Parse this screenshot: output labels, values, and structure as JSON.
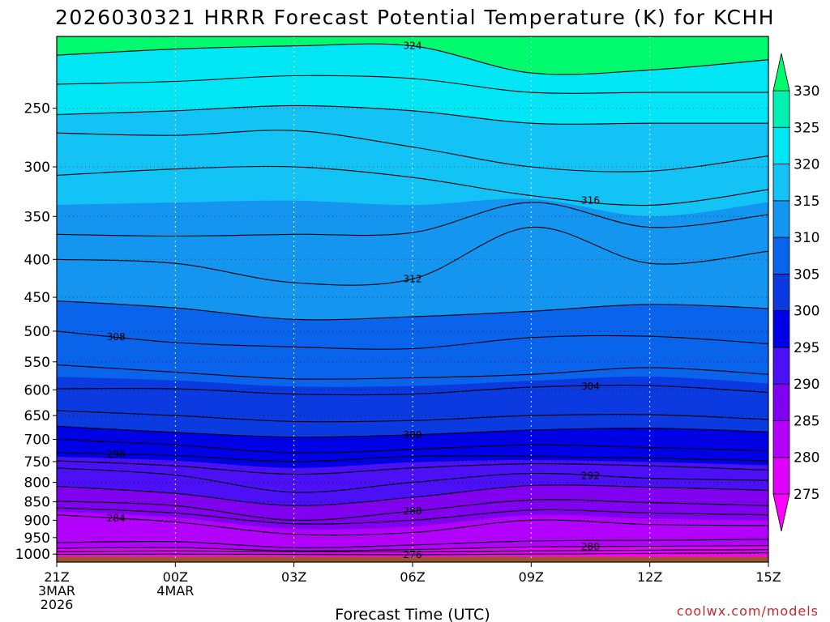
{
  "chart_data": {
    "type": "contour",
    "title": "2026030321 HRRR Forecast Potential Temperature (K) for KCHH",
    "xlabel": "Forecast Time (UTC)",
    "ylabel": "",
    "credit": "coolwx.com/models",
    "x_hours": [
      0,
      3,
      6,
      9,
      12,
      15,
      18
    ],
    "x_ticks": [
      {
        "hour": 0,
        "lines": [
          "21Z",
          "3MAR",
          "2026"
        ]
      },
      {
        "hour": 3,
        "lines": [
          "00Z",
          "4MAR"
        ]
      },
      {
        "hour": 6,
        "lines": [
          "03Z"
        ]
      },
      {
        "hour": 9,
        "lines": [
          "06Z"
        ]
      },
      {
        "hour": 12,
        "lines": [
          "09Z"
        ]
      },
      {
        "hour": 15,
        "lines": [
          "12Z"
        ]
      },
      {
        "hour": 18,
        "lines": [
          "15Z"
        ]
      }
    ],
    "y_ticks_hPa": [
      250,
      300,
      350,
      400,
      450,
      500,
      550,
      600,
      650,
      700,
      750,
      800,
      850,
      900,
      950,
      1000
    ],
    "y_range_hPa": [
      200,
      1025
    ],
    "x_range_hours": [
      0,
      18
    ],
    "levels_K": [
      275,
      280,
      285,
      290,
      295,
      300,
      305,
      310,
      315,
      320,
      325,
      330
    ],
    "colors": [
      "#ff00ff",
      "#e100ff",
      "#b400ff",
      "#8200f0",
      "#4b10f5",
      "#0000e6",
      "#0a3ae0",
      "#0a64eb",
      "#1495f0",
      "#14c3f5",
      "#00e6f5",
      "#00f0b4",
      "#00fa6e"
    ],
    "ground_color": "#a0522d",
    "isotherms": [
      {
        "theta": 276,
        "label": true,
        "p": [
          1001,
          1000,
          1001,
          1002,
          1000,
          998,
          996
        ]
      },
      {
        "theta": 278,
        "label": false,
        "p": [
          992,
          990,
          992,
          993,
          990,
          988,
          986
        ]
      },
      {
        "theta": 280,
        "label": true,
        "p": [
          982,
          980,
          990,
          986,
          978,
          976,
          974
        ]
      },
      {
        "theta": 282,
        "label": false,
        "p": [
          965,
          962,
          980,
          972,
          960,
          958,
          955
        ]
      },
      {
        "theta": 284,
        "label": true,
        "p": [
          885,
          905,
          940,
          935,
          900,
          912,
          915
        ]
      },
      {
        "theta": 286,
        "label": false,
        "p": [
          866,
          880,
          910,
          900,
          872,
          880,
          885
        ]
      },
      {
        "theta": 288,
        "label": true,
        "p": [
          848,
          860,
          900,
          875,
          845,
          852,
          860
        ]
      },
      {
        "theta": 290,
        "label": false,
        "p": [
          810,
          828,
          860,
          838,
          808,
          812,
          820
        ]
      },
      {
        "theta": 292,
        "label": true,
        "p": [
          765,
          782,
          825,
          800,
          778,
          790,
          795
        ]
      },
      {
        "theta": 294,
        "label": false,
        "p": [
          748,
          760,
          780,
          765,
          755,
          760,
          770
        ]
      },
      {
        "theta": 296,
        "label": true,
        "p": [
          730,
          736,
          750,
          738,
          738,
          742,
          748
        ]
      },
      {
        "theta": 298,
        "label": false,
        "p": [
          700,
          712,
          730,
          722,
          712,
          718,
          725
        ]
      },
      {
        "theta": 300,
        "label": true,
        "p": [
          672,
          685,
          695,
          690,
          680,
          676,
          684
        ]
      },
      {
        "theta": 302,
        "label": false,
        "p": [
          640,
          650,
          662,
          660,
          650,
          648,
          658
        ]
      },
      {
        "theta": 304,
        "label": true,
        "p": [
          598,
          598,
          608,
          608,
          595,
          592,
          605
        ]
      },
      {
        "theta": 306,
        "label": false,
        "p": [
          555,
          568,
          580,
          578,
          572,
          560,
          572
        ]
      },
      {
        "theta": 308,
        "label": true,
        "p": [
          500,
          518,
          525,
          528,
          510,
          508,
          520
        ]
      },
      {
        "theta": 310,
        "label": false,
        "p": [
          455,
          465,
          482,
          478,
          470,
          460,
          466
        ]
      },
      {
        "theta": 312,
        "label": true,
        "p": [
          400,
          405,
          430,
          425,
          362,
          405,
          390
        ]
      },
      {
        "theta": 314,
        "label": false,
        "p": [
          370,
          372,
          370,
          368,
          335,
          362,
          348
        ]
      },
      {
        "theta": 316,
        "label": true,
        "p": [
          308,
          302,
          300,
          310,
          328,
          338,
          322
        ]
      },
      {
        "theta": 318,
        "label": false,
        "p": [
          270,
          272,
          268,
          282,
          300,
          304,
          290
        ]
      },
      {
        "theta": 320,
        "label": false,
        "p": [
          255,
          252,
          248,
          252,
          262,
          262,
          262
        ]
      },
      {
        "theta": 322,
        "label": false,
        "p": [
          232,
          230,
          226,
          228,
          238,
          238,
          238
        ]
      },
      {
        "theta": 324,
        "label": true,
        "p": [
          212,
          208,
          206,
          206,
          224,
          222,
          215
        ]
      }
    ]
  }
}
